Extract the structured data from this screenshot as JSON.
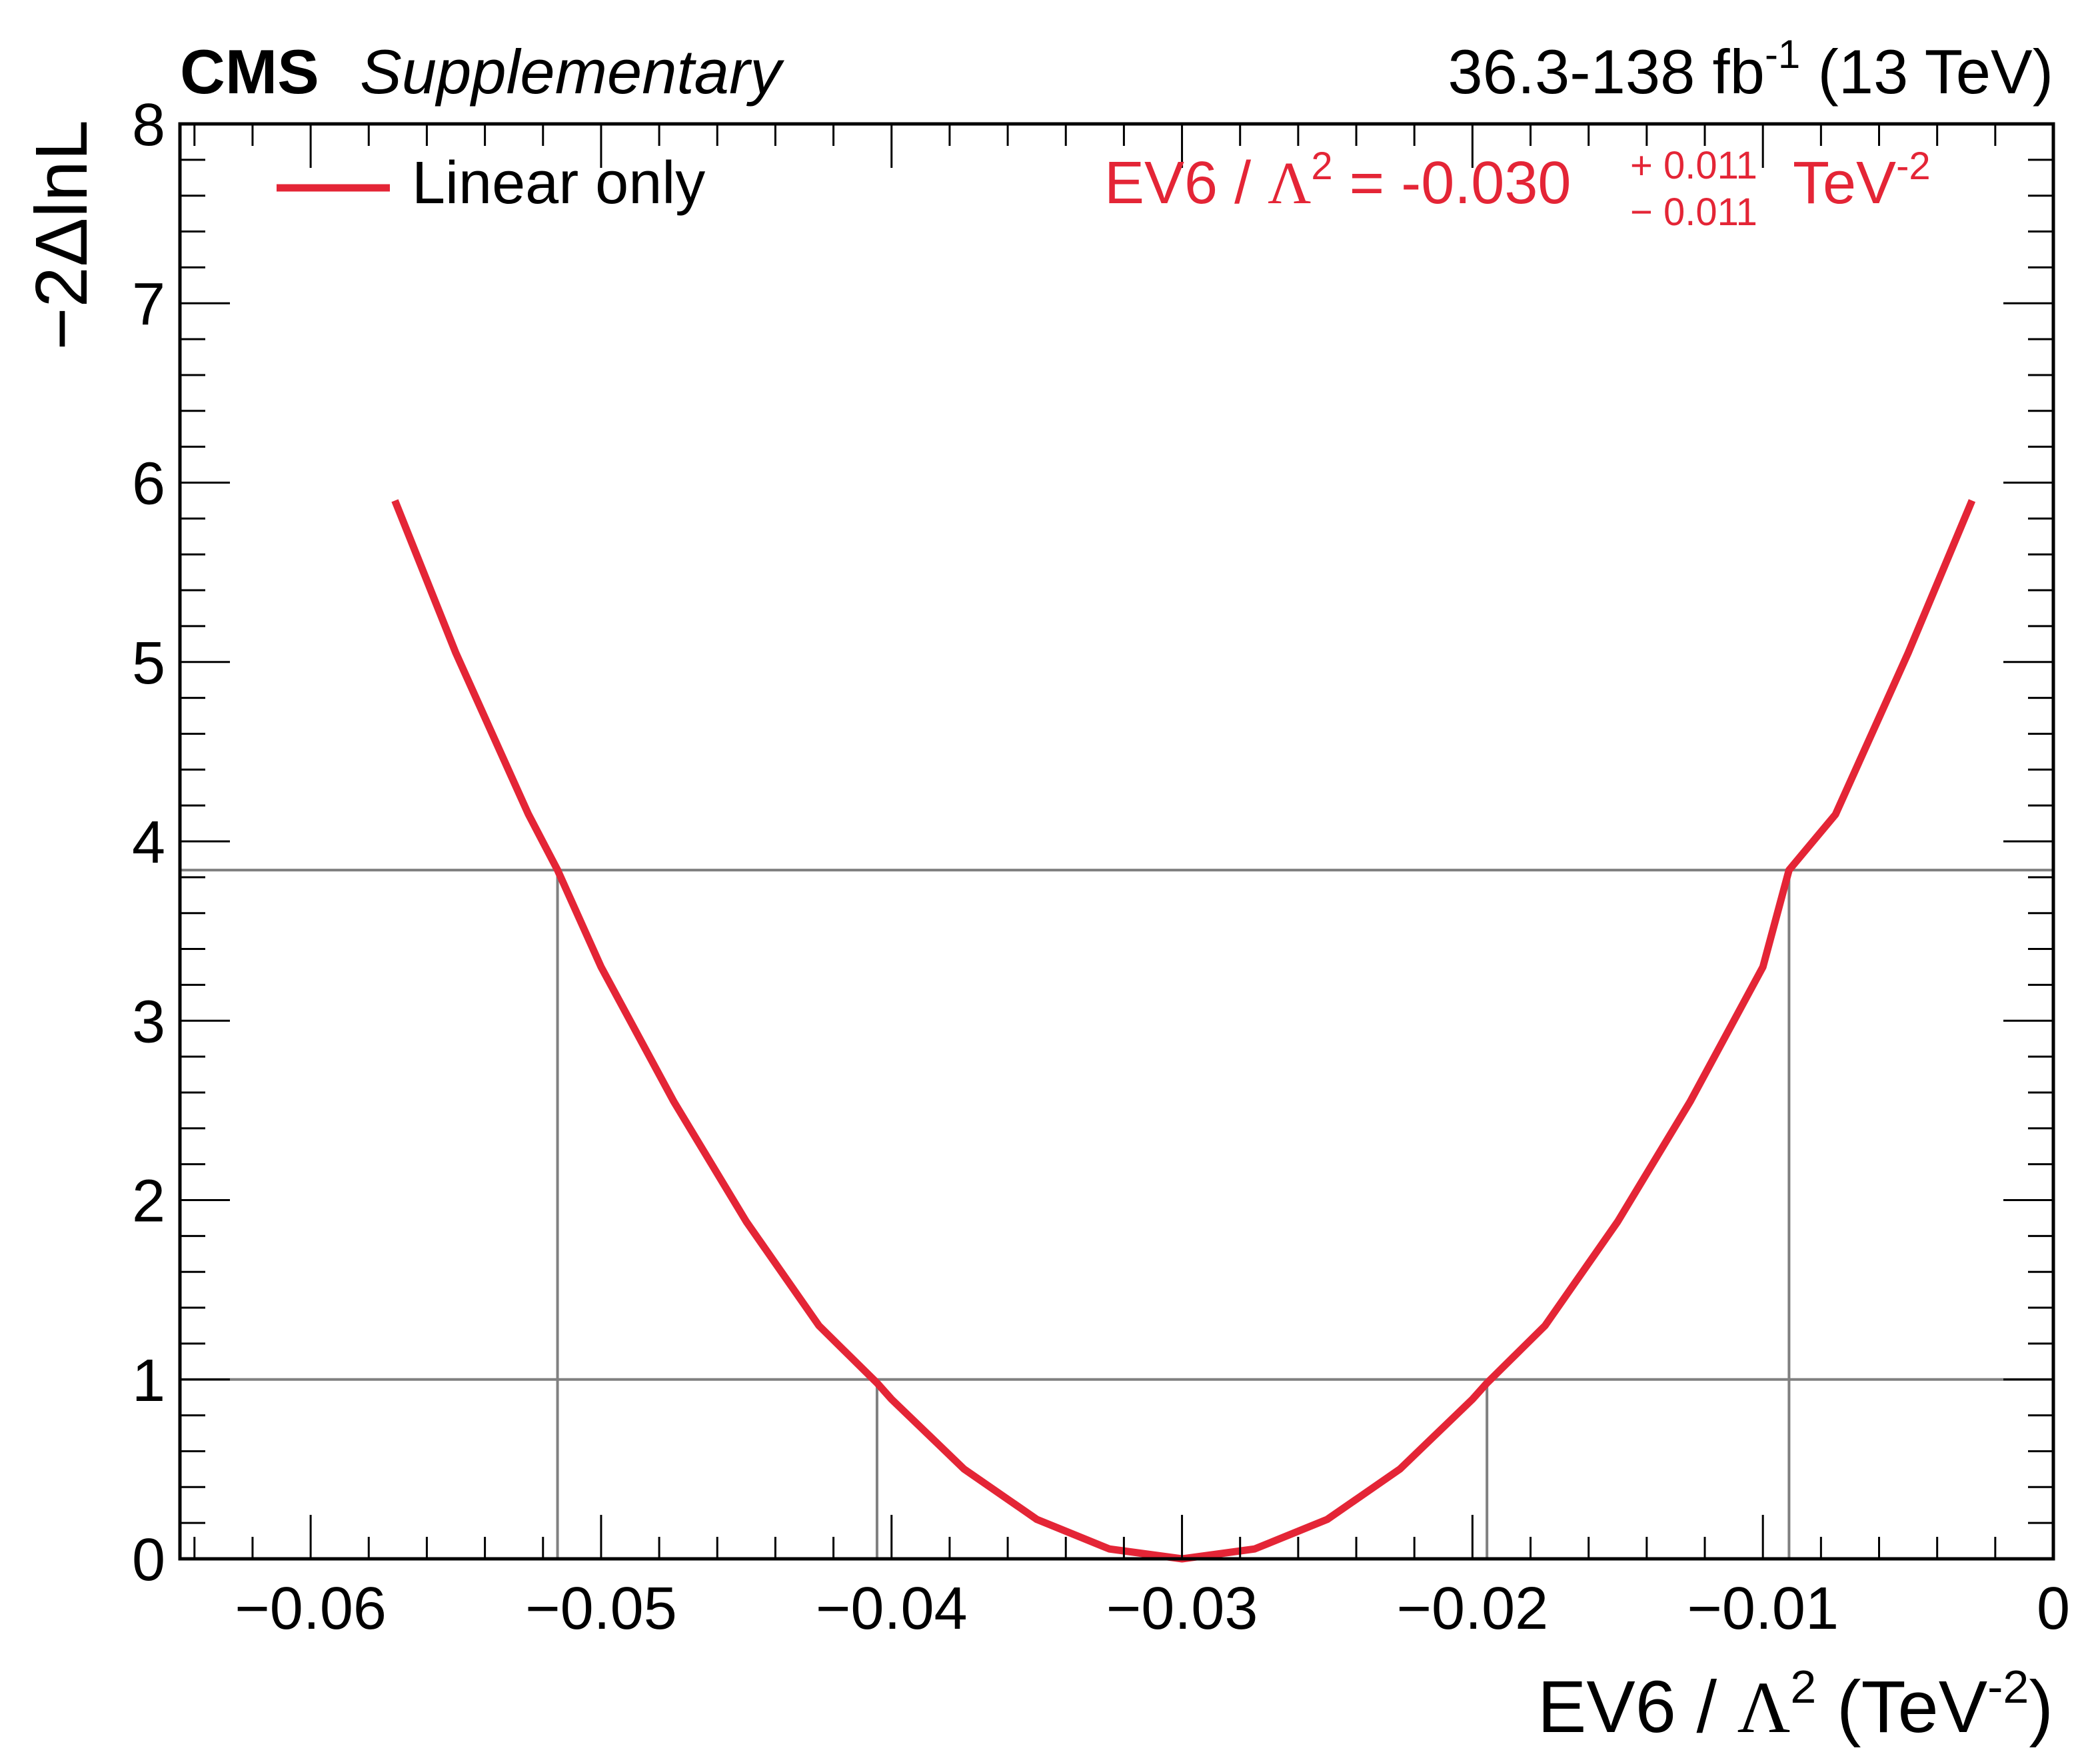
{
  "header": {
    "experiment": "CMS",
    "qualifier": "Supplementary",
    "lumi_prefix": "36.3-138 fb",
    "lumi_exp": "-1",
    "energy": "(13 TeV)"
  },
  "legend": {
    "label": "Linear only",
    "color": "#e42536",
    "placement": "top-left"
  },
  "result": {
    "param": "EV6 / ",
    "lambda": "Λ",
    "lambda_exp": "2",
    "eq": " = -0.030",
    "err_up": "+ 0.011",
    "err_down": "− 0.011",
    "unit": "TeV",
    "unit_exp": "-2"
  },
  "axes": {
    "xlabel_param": "EV6 / ",
    "xlabel_lambda": "Λ",
    "xlabel_lambda_exp": "2",
    "xlabel_unit_open": " (TeV",
    "xlabel_unit_exp": "-2",
    "xlabel_unit_close": ")",
    "ylabel": "−2ΔlnL"
  },
  "chart_data": {
    "type": "line",
    "xlim": [
      -0.0645,
      0.0
    ],
    "ylim": [
      0,
      8
    ],
    "x_ticks": [
      -0.06,
      -0.05,
      -0.04,
      -0.03,
      -0.02,
      -0.01,
      0
    ],
    "x_tick_labels": [
      "−0.06",
      "−0.05",
      "−0.04",
      "−0.03",
      "−0.02",
      "−0.01",
      "0"
    ],
    "y_ticks": [
      0,
      1,
      2,
      3,
      4,
      5,
      6,
      7,
      8
    ],
    "y_tick_labels": [
      "0",
      "1",
      "2",
      "3",
      "4",
      "5",
      "6",
      "7",
      "8"
    ],
    "series": [
      {
        "name": "Linear only",
        "color": "#e42536",
        "x": [
          -0.0571,
          -0.055,
          -0.0525,
          -0.0515,
          -0.05,
          -0.0475,
          -0.045,
          -0.0425,
          -0.0405,
          -0.04,
          -0.0375,
          -0.035,
          -0.0325,
          -0.03,
          -0.0275,
          -0.025,
          -0.0225,
          -0.02,
          -0.0195,
          -0.0175,
          -0.015,
          -0.0125,
          -0.01,
          -0.0091,
          -0.0075,
          -0.005,
          -0.0028
        ],
        "y": [
          5.9,
          5.05,
          4.15,
          3.84,
          3.3,
          2.55,
          1.88,
          1.3,
          0.98,
          0.89,
          0.5,
          0.22,
          0.055,
          0.0,
          0.055,
          0.22,
          0.5,
          0.89,
          0.98,
          1.3,
          1.88,
          2.55,
          3.3,
          3.84,
          4.15,
          5.05,
          5.9
        ]
      }
    ],
    "threshold_lines": [
      {
        "y": 1,
        "x_crossings": [
          -0.0405,
          -0.0195
        ],
        "color": "#808080"
      },
      {
        "y": 3.84,
        "x_crossings": [
          -0.0515,
          -0.0091
        ],
        "color": "#808080"
      }
    ]
  }
}
